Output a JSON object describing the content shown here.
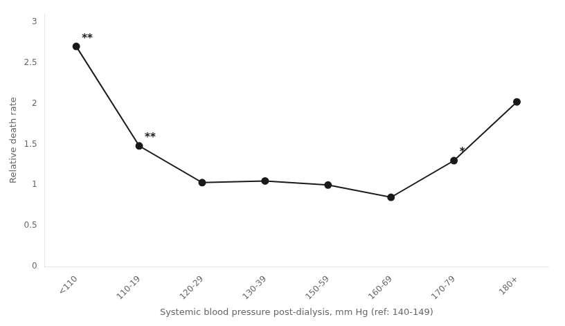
{
  "chart_data": {
    "type": "line",
    "categories": [
      "<110",
      "110-19",
      "120-29",
      "130-39",
      "150-59",
      "160-69",
      "170-79",
      "180+"
    ],
    "values": [
      2.7,
      1.48,
      1.03,
      1.05,
      1.0,
      0.85,
      1.3,
      2.02
    ],
    "annotations": [
      {
        "index": 0,
        "text": "**"
      },
      {
        "index": 1,
        "text": "**"
      },
      {
        "index": 6,
        "text": "*"
      }
    ],
    "ylabel": "Relative death rate",
    "xlabel": "Systemic blood pressure post-dialysis, mm Hg (ref: 140-149)",
    "ylim": [
      0,
      3.1
    ],
    "yticks": [
      0,
      0.5,
      1,
      1.5,
      2,
      2.5,
      3
    ],
    "color": "#1a1a1a",
    "marker": "circle",
    "grid": false
  }
}
